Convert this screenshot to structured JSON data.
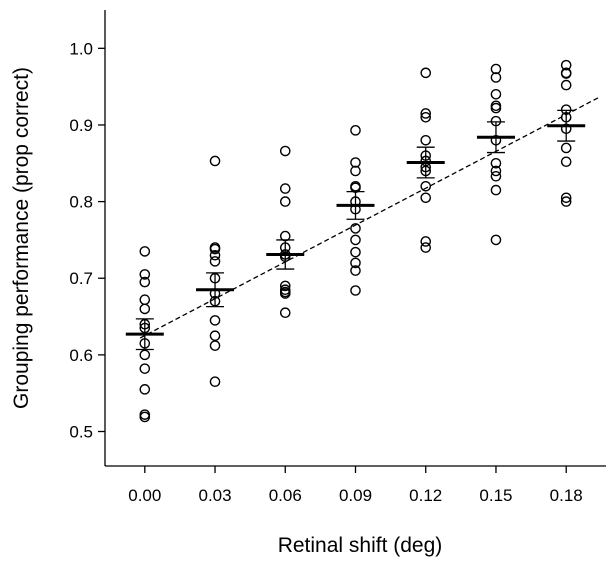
{
  "chart_data": {
    "type": "scatter",
    "title": "",
    "xlabel": "Retinal shift (deg)",
    "ylabel": "Grouping performance (prop correct)",
    "categories": [
      "0.00",
      "0.03",
      "0.06",
      "0.09",
      "0.12",
      "0.15",
      "0.18"
    ],
    "x": [
      0.0,
      0.03,
      0.06,
      0.09,
      0.12,
      0.15,
      0.18
    ],
    "xlim": [
      -0.017,
      0.197
    ],
    "ylim": [
      0.455,
      1.05
    ],
    "yticks": [
      0.5,
      0.6,
      0.7,
      0.8,
      0.9,
      1.0
    ],
    "ytick_labels": [
      "0.5",
      "0.6",
      "0.7",
      "0.8",
      "0.9",
      "1.0"
    ],
    "grid": false,
    "points": [
      [
        0.735,
        0.705,
        0.695,
        0.672,
        0.66,
        0.64,
        0.635,
        0.615,
        0.6,
        0.582,
        0.555,
        0.522,
        0.519
      ],
      [
        0.853,
        0.74,
        0.738,
        0.73,
        0.722,
        0.7,
        0.68,
        0.67,
        0.645,
        0.625,
        0.612,
        0.565
      ],
      [
        0.866,
        0.817,
        0.8,
        0.755,
        0.74,
        0.731,
        0.728,
        0.69,
        0.685,
        0.682,
        0.68,
        0.655
      ],
      [
        0.893,
        0.851,
        0.84,
        0.82,
        0.818,
        0.8,
        0.79,
        0.765,
        0.75,
        0.734,
        0.72,
        0.71,
        0.684
      ],
      [
        0.968,
        0.915,
        0.91,
        0.88,
        0.86,
        0.853,
        0.845,
        0.84,
        0.82,
        0.805,
        0.748,
        0.74
      ],
      [
        0.973,
        0.962,
        0.94,
        0.925,
        0.922,
        0.905,
        0.88,
        0.85,
        0.84,
        0.833,
        0.815,
        0.75
      ],
      [
        0.978,
        0.968,
        0.967,
        0.952,
        0.92,
        0.91,
        0.895,
        0.87,
        0.852,
        0.805,
        0.8
      ]
    ],
    "means": [
      0.627,
      0.685,
      0.731,
      0.795,
      0.851,
      0.884,
      0.899
    ],
    "sem": [
      0.02,
      0.022,
      0.019,
      0.018,
      0.02,
      0.02,
      0.02
    ],
    "fit_line": {
      "style": "dashed",
      "x": [
        -0.002,
        0.194
      ],
      "y": [
        0.622,
        0.936
      ]
    }
  }
}
